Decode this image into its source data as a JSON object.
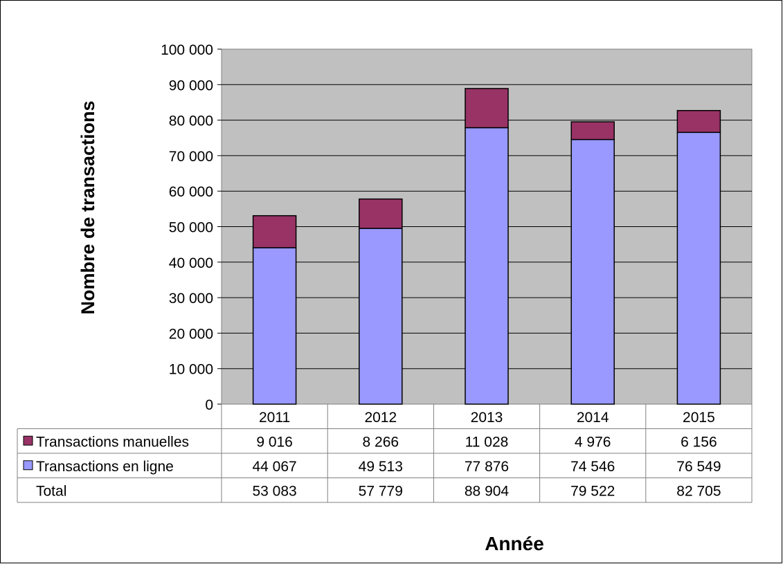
{
  "chart_data": {
    "type": "bar",
    "stacked": true,
    "ylabel": "Nombre de transactions",
    "xlabel": "Année",
    "ylim": [
      0,
      100000
    ],
    "yticks": [
      "0",
      "10 000",
      "20 000",
      "30 000",
      "40 000",
      "50 000",
      "60 000",
      "70 000",
      "80 000",
      "90 000",
      "100 000"
    ],
    "categories": [
      "2011",
      "2012",
      "2013",
      "2014",
      "2015"
    ],
    "series": [
      {
        "name": "Transactions en ligne",
        "color": "#9999ff",
        "values": [
          44067,
          49513,
          77876,
          74546,
          76549
        ],
        "labels": [
          "44 067",
          "49 513",
          "77 876",
          "74 546",
          "76 549"
        ]
      },
      {
        "name": "Transactions manuelles",
        "color": "#993366",
        "values": [
          9016,
          8266,
          11028,
          4976,
          6156
        ],
        "labels": [
          "9 016",
          "8 266",
          "11 028",
          "4 976",
          "6 156"
        ]
      }
    ],
    "total": {
      "name": "Total",
      "labels": [
        "53 083",
        "57 779",
        "88 904",
        "79 522",
        "82 705"
      ]
    },
    "plot_background": "#c0c0c0",
    "grid": true,
    "legend": "data-table"
  }
}
